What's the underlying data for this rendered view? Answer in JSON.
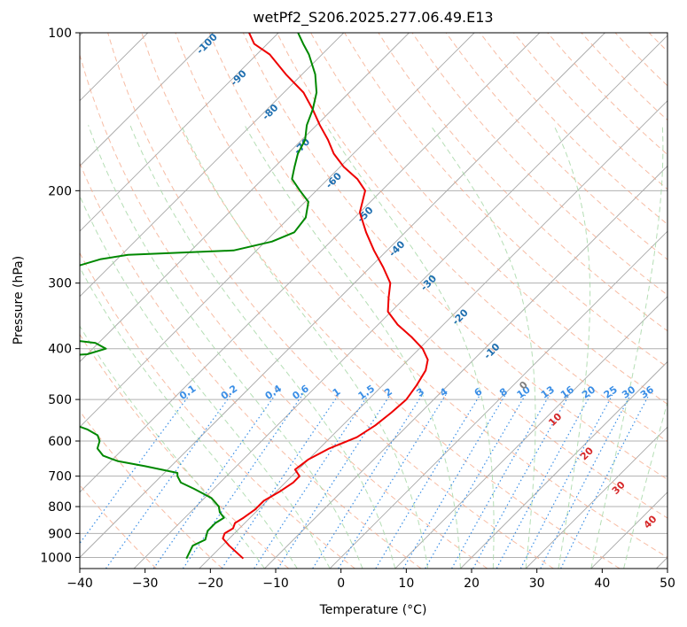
{
  "chart_data": {
    "type": "line",
    "title": "wetPf2_S206.2025.277.06.49.E13",
    "xlabel": "Temperature (°C)",
    "ylabel": "Pressure (hPa)",
    "xlim": [
      -40,
      50
    ],
    "ylim": [
      1050,
      100
    ],
    "y_scale": "log",
    "skew": "skew-T log-P",
    "grid": true,
    "x_ticks": [
      "−40",
      "−30",
      "−20",
      "−10",
      "0",
      "10",
      "20",
      "30",
      "40",
      "50"
    ],
    "y_ticks": [
      "100",
      "200",
      "300",
      "400",
      "500",
      "600",
      "700",
      "800",
      "900",
      "1000"
    ],
    "series": [
      {
        "color": "#ee0000",
        "points": [
          [
            -14.8,
            1005
          ],
          [
            -18.9,
            950
          ],
          [
            -21.0,
            920
          ],
          [
            -21.5,
            900
          ],
          [
            -21.0,
            880
          ],
          [
            -21.5,
            860
          ],
          [
            -21.0,
            840
          ],
          [
            -20.5,
            810
          ],
          [
            -20.5,
            780
          ],
          [
            -19.5,
            750
          ],
          [
            -18.8,
            720
          ],
          [
            -18.8,
            700
          ],
          [
            -20.5,
            680
          ],
          [
            -20.0,
            650
          ],
          [
            -18.5,
            620
          ],
          [
            -16.0,
            590
          ],
          [
            -15.0,
            560
          ],
          [
            -14.5,
            530
          ],
          [
            -14.2,
            500
          ],
          [
            -14.8,
            470
          ],
          [
            -15.7,
            440
          ],
          [
            -17.0,
            420
          ],
          [
            -19.5,
            400
          ],
          [
            -23.0,
            380
          ],
          [
            -27.0,
            360
          ],
          [
            -30.5,
            340
          ],
          [
            -32.5,
            320
          ],
          [
            -34.5,
            300
          ],
          [
            -38.0,
            280
          ],
          [
            -42.0,
            260
          ],
          [
            -46.0,
            240
          ],
          [
            -50.0,
            220
          ],
          [
            -52.5,
            200
          ],
          [
            -55.5,
            190
          ],
          [
            -59.5,
            180
          ],
          [
            -63.0,
            170
          ],
          [
            -66.0,
            160
          ],
          [
            -69.5,
            150
          ],
          [
            -73.0,
            140
          ],
          [
            -77.0,
            130
          ],
          [
            -82.5,
            120
          ],
          [
            -88.0,
            110
          ],
          [
            -92.0,
            105
          ],
          [
            -94.5,
            100
          ]
        ]
      },
      {
        "color": "#008800",
        "points": [
          [
            -23.5,
            1005
          ],
          [
            -24.5,
            950
          ],
          [
            -23.5,
            925
          ],
          [
            -24.5,
            890
          ],
          [
            -24.5,
            860
          ],
          [
            -24.0,
            840
          ],
          [
            -25.5,
            820
          ],
          [
            -26.5,
            800
          ],
          [
            -29.0,
            770
          ],
          [
            -33.0,
            740
          ],
          [
            -36.0,
            720
          ],
          [
            -37.5,
            700
          ],
          [
            -38.0,
            690
          ],
          [
            -44.0,
            670
          ],
          [
            -49.0,
            655
          ],
          [
            -52.0,
            640
          ],
          [
            -54.0,
            620
          ],
          [
            -54.8,
            600
          ],
          [
            -56.0,
            585
          ],
          [
            -58.5,
            570
          ],
          [
            -62.0,
            555
          ],
          [
            -63.0,
            540
          ],
          [
            -63.5,
            525
          ],
          [
            -64.0,
            510
          ],
          [
            -64.5,
            500
          ],
          [
            -65.0,
            490
          ],
          [
            -67.5,
            480
          ],
          [
            -72.0,
            470
          ],
          [
            -78.0,
            460
          ],
          [
            -90.0,
            450
          ],
          [
            -92.0,
            440
          ],
          [
            -87.0,
            430
          ],
          [
            -83.0,
            420
          ],
          [
            -70.0,
            410
          ],
          [
            -68.0,
            400
          ],
          [
            -70.5,
            390
          ],
          [
            -79.0,
            380
          ],
          [
            -83.0,
            372
          ],
          [
            -81.5,
            368
          ],
          [
            -76.0,
            360
          ],
          [
            -76.5,
            355
          ],
          [
            -78.5,
            350
          ],
          [
            -82.5,
            348
          ],
          [
            -84.5,
            340
          ],
          [
            -86.0,
            320
          ],
          [
            -87.5,
            300
          ],
          [
            -87.0,
            285
          ],
          [
            -82.5,
            270
          ],
          [
            -79.0,
            265
          ],
          [
            -63.5,
            260
          ],
          [
            -59.0,
            250
          ],
          [
            -57.0,
            240
          ],
          [
            -57.5,
            225
          ],
          [
            -59.5,
            210
          ],
          [
            -62.5,
            200
          ],
          [
            -65.5,
            190
          ],
          [
            -67.0,
            180
          ],
          [
            -68.5,
            170
          ],
          [
            -69.5,
            160
          ],
          [
            -71.5,
            150
          ],
          [
            -73.0,
            140
          ],
          [
            -75.0,
            130
          ],
          [
            -78.0,
            120
          ],
          [
            -82.0,
            110
          ],
          [
            -84.5,
            105
          ],
          [
            -87.0,
            100
          ]
        ]
      }
    ],
    "mixing_ratio_labels": [
      "0.1",
      "0.2",
      "0.4",
      "0.6",
      "1",
      "1.5",
      "2",
      "3",
      "4",
      "6",
      "8",
      "10",
      "13",
      "16",
      "20",
      "25",
      "30",
      "36"
    ],
    "moist_adiabat_labels": [
      "-100",
      "-90",
      "-80",
      "-70",
      "-60",
      "-50",
      "-40",
      "-30",
      "-20",
      "-10",
      "0",
      "10",
      "20",
      "30",
      "40"
    ]
  },
  "colors": {
    "isotherm": "#a8a8a8",
    "isobar": "#b0b0b0",
    "dry_adiabat": "#f4a585",
    "moist_adiabat": "#a8d8a8",
    "mixing_ratio": "#3a8ee6",
    "label_blue": "#2f7fc0",
    "label_cold_blue": "#1f6fb0",
    "label_zero": "#808080",
    "label_red": "#d62728"
  }
}
